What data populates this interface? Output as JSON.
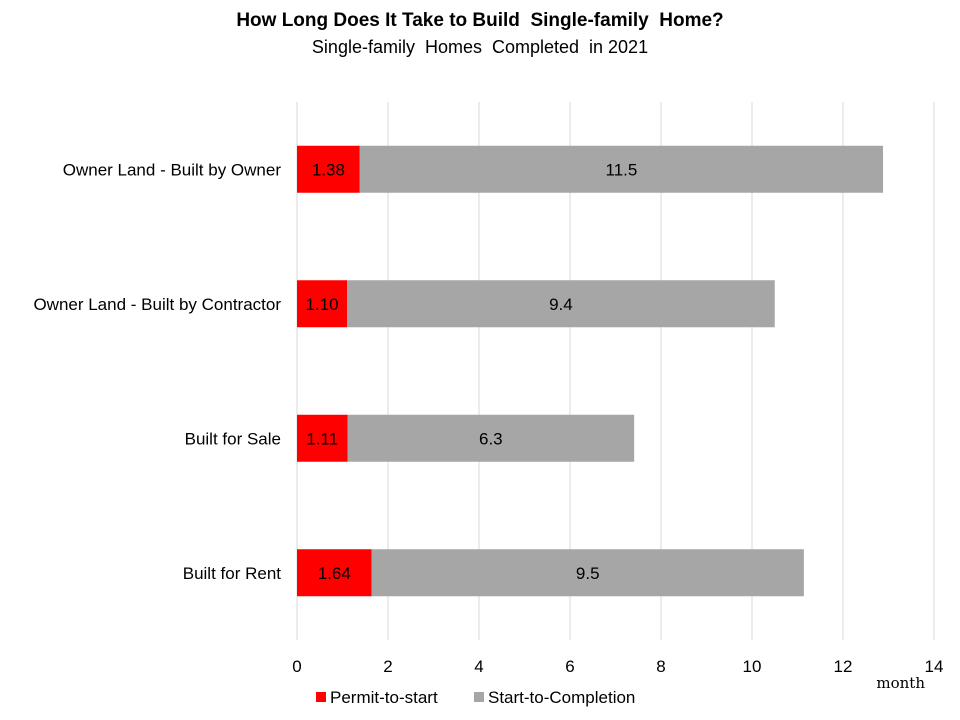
{
  "chart_data": {
    "type": "bar",
    "orientation": "horizontal",
    "stacked": true,
    "title": "How Long Does It Take to Build  Single-family  Home?",
    "subtitle": "Single-family  Homes  Completed  in 2021",
    "categories": [
      "Owner Land - Built by Owner",
      "Owner Land - Built by Contractor",
      "Built for Sale",
      "Built for Rent"
    ],
    "series": [
      {
        "name": "Permit-to-start",
        "color": "#ff0000",
        "values": [
          1.38,
          1.1,
          1.11,
          1.64
        ],
        "labels": [
          "1.38",
          "1.10",
          "1.11",
          "1.64"
        ]
      },
      {
        "name": "Start-to-Completion",
        "color": "#a6a6a6",
        "values": [
          11.5,
          9.4,
          6.3,
          9.5
        ],
        "labels": [
          "11.5",
          "9.4",
          "6.3",
          "9.5"
        ]
      }
    ],
    "x_ticks": [
      0,
      2,
      4,
      6,
      8,
      10,
      12,
      14
    ],
    "xlim": [
      0,
      14
    ],
    "xunit": "month",
    "grid": true,
    "legend_position": "bottom"
  }
}
